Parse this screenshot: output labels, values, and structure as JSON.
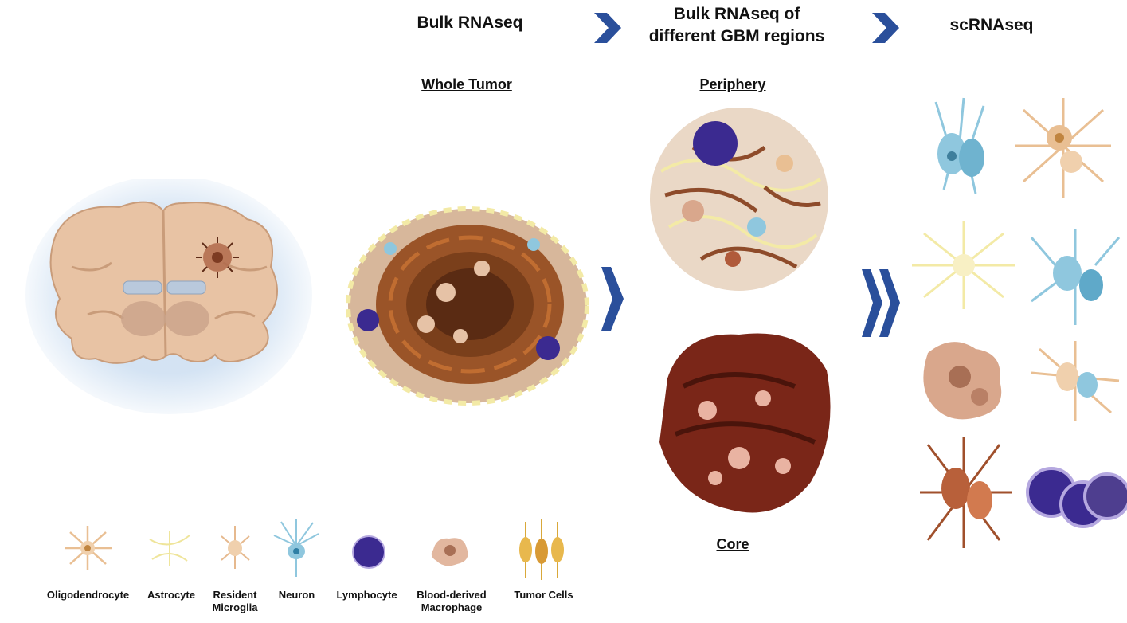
{
  "stages": {
    "bulk": "Bulk RNAseq",
    "regions_line1": "Bulk RNAseq of",
    "regions_line2": "different GBM regions",
    "sc": "scRNAseq"
  },
  "regions": {
    "whole": "Whole Tumor",
    "periphery": "Periphery",
    "core": "Core"
  },
  "legend": [
    {
      "label": "Oligodendrocyte",
      "icon": "oligodendrocyte-icon"
    },
    {
      "label": "Astrocyte",
      "icon": "astrocyte-icon"
    },
    {
      "label": "Resident\nMicroglia",
      "icon": "microglia-icon"
    },
    {
      "label": "Neuron",
      "icon": "neuron-icon"
    },
    {
      "label": "Lymphocyte",
      "icon": "lymphocyte-icon"
    },
    {
      "label": "Blood-derived\nMacrophage",
      "icon": "macrophage-icon"
    },
    {
      "label": "Tumor Cells",
      "icon": "tumor-cells-icon"
    }
  ],
  "colors": {
    "arrow": "#2a4f9b",
    "brain": "#e8c3a4",
    "halo": "#cfe0f2",
    "tumor": "#8a4a24",
    "lymphocyte": "#3b2a90",
    "neuron": "#8fc7de",
    "astrocyte": "#f3eaa6",
    "oligo": "#e9bf93",
    "macrophage": "#d9a78c",
    "core": "#7a2618"
  }
}
